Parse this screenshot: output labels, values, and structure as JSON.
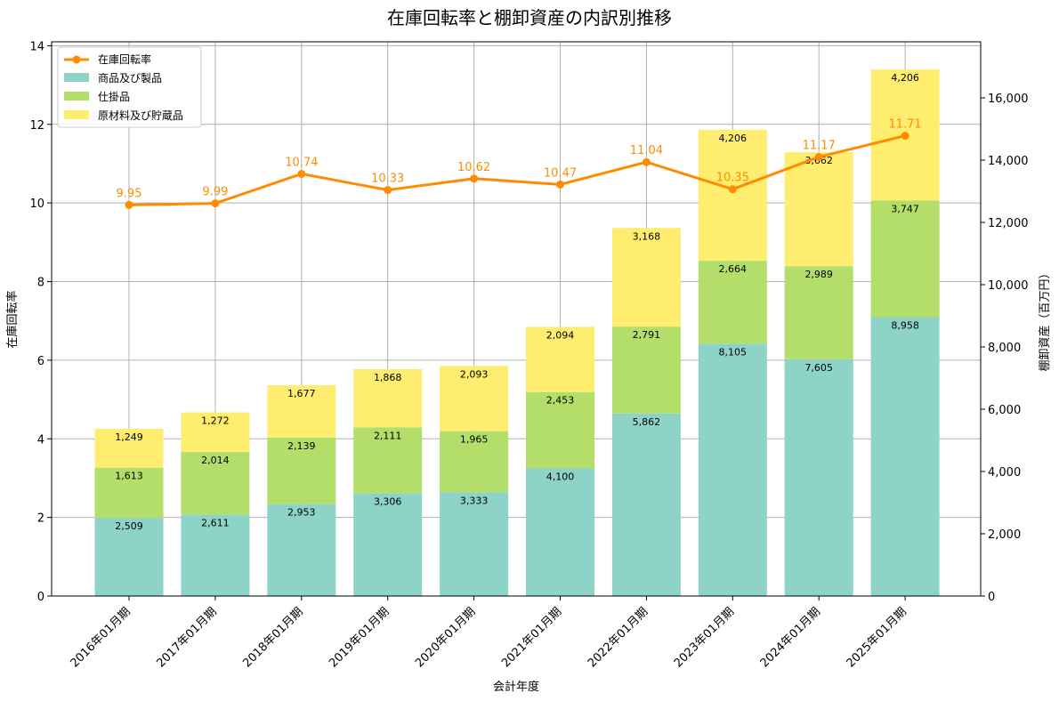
{
  "chart_data": {
    "type": "bar",
    "title": "在庫回転率と棚卸資産の内訳別推移",
    "xlabel": "会計年度",
    "ylabel_left": "在庫回転率",
    "ylabel_right": "棚卸資産（百万円）",
    "categories": [
      "2016年01月期",
      "2017年01月期",
      "2018年01月期",
      "2019年01月期",
      "2020年01月期",
      "2021年01月期",
      "2022年01月期",
      "2023年01月期",
      "2024年01月期",
      "2025年01月期"
    ],
    "stacked": true,
    "grid": true,
    "legend_position": "top-left",
    "ylim_left": [
      0,
      14.1
    ],
    "ylim_right": [
      0,
      17800
    ],
    "yticks_left": [
      0,
      2,
      4,
      6,
      8,
      10,
      12,
      14
    ],
    "yticks_right": [
      0,
      2000,
      4000,
      6000,
      8000,
      10000,
      12000,
      14000,
      16000
    ],
    "yticks_right_labels": [
      "0",
      "2,000",
      "4,000",
      "6,000",
      "8,000",
      "10,000",
      "12,000",
      "14,000",
      "16,000"
    ],
    "series": [
      {
        "name": "商品及び製品",
        "axis": "right",
        "kind": "bar",
        "color": "#8dd3c7",
        "values": [
          2509,
          2611,
          2953,
          3306,
          3333,
          4100,
          5862,
          8105,
          7605,
          8958
        ],
        "labels": [
          "2,509",
          "2,611",
          "2,953",
          "3,306",
          "3,333",
          "4,100",
          "5,862",
          "8,105",
          "7,605",
          "8,958"
        ]
      },
      {
        "name": "仕掛品",
        "axis": "right",
        "kind": "bar",
        "color": "#b3de69",
        "values": [
          1613,
          2014,
          2139,
          2111,
          1965,
          2453,
          2791,
          2664,
          2989,
          3747
        ],
        "labels": [
          "1,613",
          "2,014",
          "2,139",
          "2,111",
          "1,965",
          "2,453",
          "2,791",
          "2,664",
          "2,989",
          "3,747"
        ]
      },
      {
        "name": "原材料及び貯蔵品",
        "axis": "right",
        "kind": "bar",
        "color": "#ffed6f",
        "values": [
          1249,
          1272,
          1677,
          1868,
          2093,
          2094,
          3168,
          4206,
          3662,
          4206
        ],
        "labels": [
          "1,249",
          "1,272",
          "1,677",
          "1,868",
          "2,093",
          "2,094",
          "3,168",
          "4,206",
          "3,662",
          "4,206"
        ]
      },
      {
        "name": "在庫回転率",
        "axis": "left",
        "kind": "line",
        "color": "#ff8c00",
        "values": [
          9.95,
          9.99,
          10.74,
          10.33,
          10.62,
          10.47,
          11.04,
          10.35,
          11.17,
          11.71
        ],
        "labels": [
          "9.95",
          "9.99",
          "10.74",
          "10.33",
          "10.62",
          "10.47",
          "11.04",
          "10.35",
          "11.17",
          "11.71"
        ]
      }
    ]
  }
}
